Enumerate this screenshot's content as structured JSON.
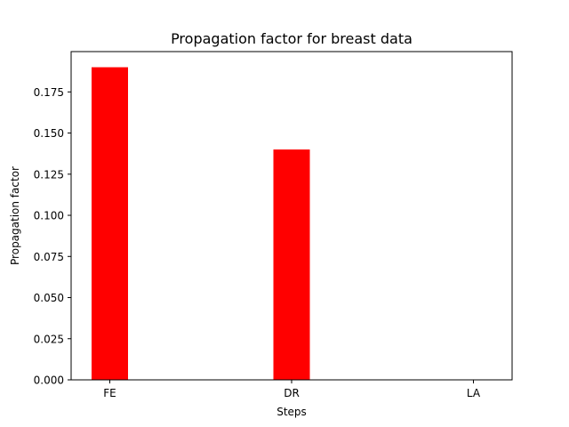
{
  "chart_data": {
    "type": "bar",
    "title": "Propagation factor for breast data",
    "xlabel": "Steps",
    "ylabel": "Propagation factor",
    "categories": [
      "FE",
      "DR",
      "LA"
    ],
    "values": [
      0.19,
      0.14,
      0.0
    ],
    "ylim": [
      0.0,
      0.1995
    ],
    "yticks": [
      "0.000",
      "0.025",
      "0.050",
      "0.075",
      "0.100",
      "0.125",
      "0.150",
      "0.175"
    ],
    "bar_color": "#ff0000",
    "grid": false,
    "legend": false
  }
}
